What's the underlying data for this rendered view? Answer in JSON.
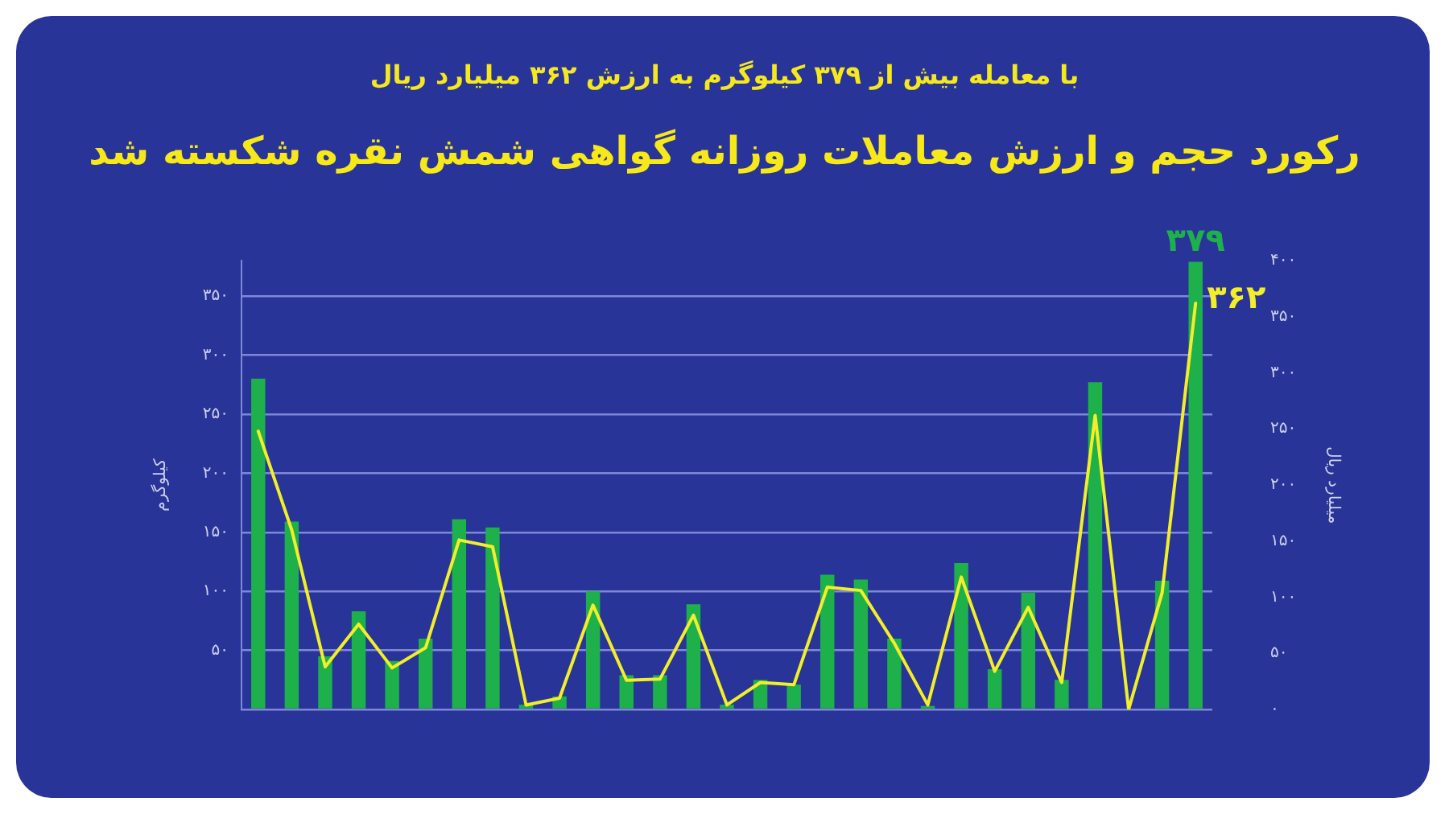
{
  "chart_data": {
    "type": "bar",
    "title": "رکورد حجم و ارزش معاملات روزانه گواهی شمش نقره شکسته شد",
    "subtitle": "با معامله بیش از ۳۷۹ کیلوگرم به ارزش ۳۶۲ میلیارد ریال",
    "ylabel": "کیلوگرم",
    "y2label": "میلیارد ریال",
    "categories": [
      null,
      null,
      null,
      null,
      null,
      null,
      null,
      null,
      null,
      null,
      null,
      null,
      null,
      null,
      null,
      null,
      null,
      null,
      null,
      null,
      null,
      null,
      null,
      null,
      null,
      null,
      null,
      null,
      null
    ],
    "series": [
      {
        "color": "#1db04b",
        "values": [
          280,
          159,
          45,
          83,
          41,
          60,
          161,
          154,
          4,
          11,
          100,
          29,
          29,
          89,
          4,
          25,
          21,
          114,
          110,
          60,
          3,
          124,
          34,
          99,
          25,
          277,
          0,
          109,
          379
        ],
        "value_labels": [
          null,
          null,
          null,
          null,
          null,
          null,
          null,
          null,
          null,
          null,
          null,
          null,
          null,
          null,
          null,
          null,
          null,
          null,
          null,
          null,
          null,
          null,
          null,
          null,
          null,
          null,
          null,
          null,
          "۳۷۹"
        ]
      },
      {
        "type": "line",
        "axis": "y2",
        "color": "#f2ee2a",
        "values": [
          248,
          160,
          38,
          76,
          37,
          55,
          151,
          145,
          4,
          10,
          93,
          26,
          27,
          84,
          4,
          24,
          22,
          109,
          106,
          59,
          4,
          118,
          34,
          91,
          24,
          262,
          0,
          104,
          362
        ],
        "value_labels": [
          null,
          null,
          null,
          null,
          null,
          null,
          null,
          null,
          null,
          null,
          null,
          null,
          null,
          null,
          null,
          null,
          null,
          null,
          null,
          null,
          null,
          null,
          null,
          null,
          null,
          null,
          null,
          null,
          "۳۶۲"
        ]
      }
    ],
    "ylim": [
      0,
      380
    ],
    "yticks": [
      {
        "value": 0,
        "label": null
      },
      {
        "value": 50,
        "label": "۵۰"
      },
      {
        "value": 100,
        "label": "۱۰۰"
      },
      {
        "value": 150,
        "label": "۱۵۰"
      },
      {
        "value": 200,
        "label": "۲۰۰"
      },
      {
        "value": 250,
        "label": "۲۵۰"
      },
      {
        "value": 300,
        "label": "۳۰۰"
      },
      {
        "value": 350,
        "label": "۳۵۰"
      }
    ],
    "y2lim": [
      0,
      400
    ],
    "y2ticks": [
      {
        "value": 0,
        "label": "۰"
      },
      {
        "value": 50,
        "label": "۵۰"
      },
      {
        "value": 100,
        "label": "۱۰۰"
      },
      {
        "value": 150,
        "label": "۱۵۰"
      },
      {
        "value": 200,
        "label": "۲۰۰"
      },
      {
        "value": 250,
        "label": "۲۵۰"
      },
      {
        "value": 300,
        "label": "۳۰۰"
      },
      {
        "value": 350,
        "label": "۳۵۰"
      },
      {
        "value": 400,
        "label": "۴۰۰"
      }
    ],
    "grid": "y",
    "legend": false,
    "marker": "none"
  }
}
